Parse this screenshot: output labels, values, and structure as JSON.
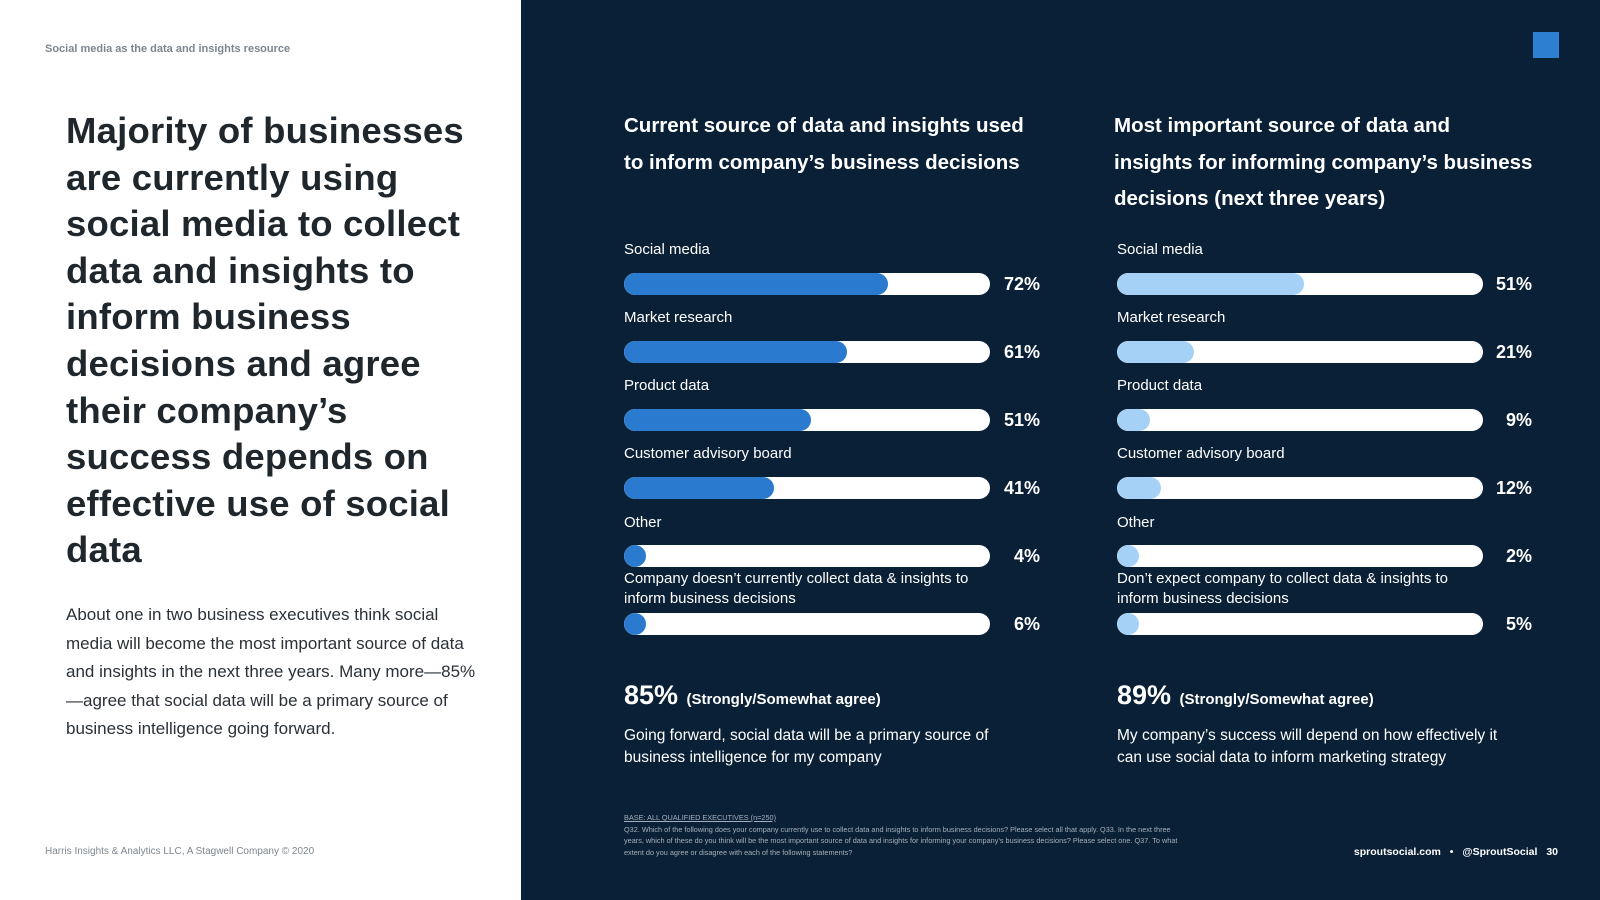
{
  "left": {
    "section_label": "Social media as the data and insights resource",
    "headline": "Majority of businesses are currently using social media to collect data and insights to inform business decisions and agree their company’s success depends on effective use of social data",
    "body": "About one in two business executives think social media will become the most important source of data and insights in the next three years. Many more—85%—agree that social data will be a primary source of business intelligence going forward.",
    "footer": "Harris Insights & Analytics LLC, A Stagwell Company © 2020"
  },
  "chart_data": [
    {
      "type": "bar",
      "orientation": "horizontal",
      "title": "Current source of data and insights used to inform company’s business decisions",
      "categories": [
        "Social media",
        "Market research",
        "Product data",
        "Customer advisory board",
        "Other",
        "Company doesn’t currently collect data & insights to inform business decisions"
      ],
      "values": [
        72,
        61,
        51,
        41,
        4,
        6
      ],
      "value_labels": [
        "72%",
        "61%",
        "51%",
        "41%",
        "4%",
        "6%"
      ],
      "unit": "%",
      "xlim": [
        0,
        100
      ],
      "color": "#2a7bcf"
    },
    {
      "type": "bar",
      "orientation": "horizontal",
      "title": "Most important source of data and insights for informing company’s business decisions (next three years)",
      "categories": [
        "Social media",
        "Market research",
        "Product data",
        "Customer advisory board",
        "Other",
        "Don’t expect company to collect data & insights to inform business decisions"
      ],
      "values": [
        51,
        21,
        9,
        12,
        2,
        5
      ],
      "value_labels": [
        "51%",
        "21%",
        "9%",
        "12%",
        "2%",
        "5%"
      ],
      "unit": "%",
      "xlim": [
        0,
        100
      ],
      "color": "#a6d1f7"
    }
  ],
  "stats": [
    {
      "pct": "85%",
      "qualifier": "(Strongly/Somewhat agree)",
      "text": "Going forward, social data will be a primary source of business intelligence for my company"
    },
    {
      "pct": "89%",
      "qualifier": "(Strongly/Somewhat agree)",
      "text": "My company’s success will depend on how effectively it can use social data to inform marketing strategy"
    }
  ],
  "base_note": {
    "head": "BASE: ALL QUALIFIED EXECUTIVES (n=250)",
    "text": "Q32. Which of the following does your company currently use to collect data and insights to inform business decisions? Please select all that apply. Q33. In the next three years, which of these do you think will be the most important source of data and insights for informing your company’s business decisions? Please select one. Q37. To what extent do you agree or disagree with each of the following statements?"
  },
  "footer_right": {
    "site": "sproutsocial.com",
    "separator": "•",
    "handle": "@SproutSocial",
    "page_number": "30"
  },
  "colors": {
    "panel": "#0a2036",
    "accent": "#2c7fd1"
  }
}
